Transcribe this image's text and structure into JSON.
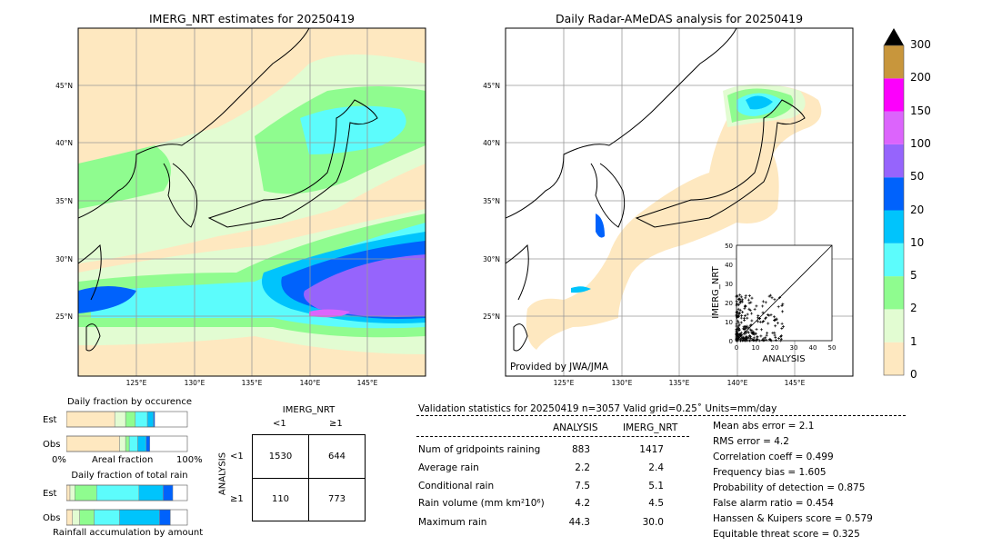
{
  "chart_data": [
    {
      "type": "heatmap",
      "title": "IMERG_NRT estimates for 20250419",
      "lat_ticks": [
        "25°N",
        "30°N",
        "35°N",
        "40°N",
        "45°N"
      ],
      "lon_ticks": [
        "125°E",
        "130°E",
        "135°E",
        "140°E",
        "145°E"
      ]
    },
    {
      "type": "heatmap",
      "title": "Daily Radar-AMeDAS analysis for 20250419",
      "lat_ticks": [
        "25°N",
        "30°N",
        "35°N",
        "40°N",
        "45°N"
      ],
      "lon_ticks": [
        "125°E",
        "130°E",
        "135°E",
        "140°E",
        "145°E"
      ],
      "annotation": "Provided by JWA/JMA"
    },
    {
      "type": "scatter",
      "xlabel": "ANALYSIS",
      "ylabel": "IMERG_NRT",
      "xlim": [
        0,
        50
      ],
      "ylim": [
        0,
        50
      ],
      "x_ticks": [
        "0",
        "10",
        "20",
        "30",
        "40",
        "50"
      ],
      "y_ticks": [
        "0",
        "10",
        "20",
        "30",
        "40",
        "50"
      ]
    },
    {
      "type": "bar",
      "title": "Daily fraction by occurence",
      "categories": [
        "Est",
        "Obs"
      ],
      "xlabel": "Areal fraction",
      "x_ticks": [
        "0%",
        "100%"
      ],
      "series": [
        {
          "values": [
            0.4,
            0.44
          ]
        },
        {
          "values": [
            0.09,
            0.05
          ]
        },
        {
          "values": [
            0.08,
            0.03
          ]
        },
        {
          "values": [
            0.1,
            0.07
          ]
        },
        {
          "values": [
            0.05,
            0.07
          ]
        },
        {
          "values": [
            0.01,
            0.03
          ]
        }
      ]
    },
    {
      "type": "bar",
      "title": "Daily fraction of total rain",
      "categories": [
        "Est",
        "Obs"
      ],
      "xlabel": "Rainfall accumulation by amount",
      "series": [
        {
          "values": [
            0.03,
            0.05
          ]
        },
        {
          "values": [
            0.04,
            0.06
          ]
        },
        {
          "values": [
            0.18,
            0.12
          ]
        },
        {
          "values": [
            0.35,
            0.21
          ]
        },
        {
          "values": [
            0.2,
            0.33
          ]
        },
        {
          "values": [
            0.08,
            0.09
          ]
        }
      ]
    },
    {
      "type": "table",
      "title": "IMERG_NRT",
      "row_label": "ANALYSIS",
      "col_headers": [
        "<1",
        "≥1"
      ],
      "row_headers": [
        "<1",
        "≥1"
      ],
      "cells": [
        [
          "1530",
          "644"
        ],
        [
          "110",
          "773"
        ]
      ]
    }
  ],
  "colorbar": {
    "labels": [
      "0",
      "1",
      "2",
      "5",
      "10",
      "20",
      "50",
      "100",
      "150",
      "200",
      "300"
    ],
    "colors": [
      "#fee8c0",
      "#e2fcd2",
      "#8ffc8f",
      "#5cfcfc",
      "#00c4fc",
      "#0062fc",
      "#9664fc",
      "#dc64fc",
      "#fc00fc",
      "#c8963c"
    ]
  },
  "stats": {
    "header": "Validation statistics for 20250419  n=3057 Valid  grid=0.25˚ Units=mm/day",
    "col_analysis": "ANALYSIS",
    "col_imerg": "IMERG_NRT",
    "rows": [
      {
        "label": "Num of gridpoints raining",
        "analysis": "883",
        "imerg": "1417"
      },
      {
        "label": "Average rain",
        "analysis": "2.2",
        "imerg": "2.4"
      },
      {
        "label": "Conditional rain",
        "analysis": "7.5",
        "imerg": "5.1"
      },
      {
        "label": "Rain volume (mm km²10⁶)",
        "analysis": "4.2",
        "imerg": "4.5"
      },
      {
        "label": "Maximum rain",
        "analysis": "44.3",
        "imerg": "30.0"
      }
    ],
    "scores": [
      "Mean abs error =    2.1",
      "RMS error =    4.2",
      "Correlation coeff =  0.499",
      "Frequency bias =  1.605",
      "Probability of detection =  0.875",
      "False alarm ratio =  0.454",
      "Hanssen & Kuipers score =  0.579",
      "Equitable threat score =  0.325"
    ]
  }
}
